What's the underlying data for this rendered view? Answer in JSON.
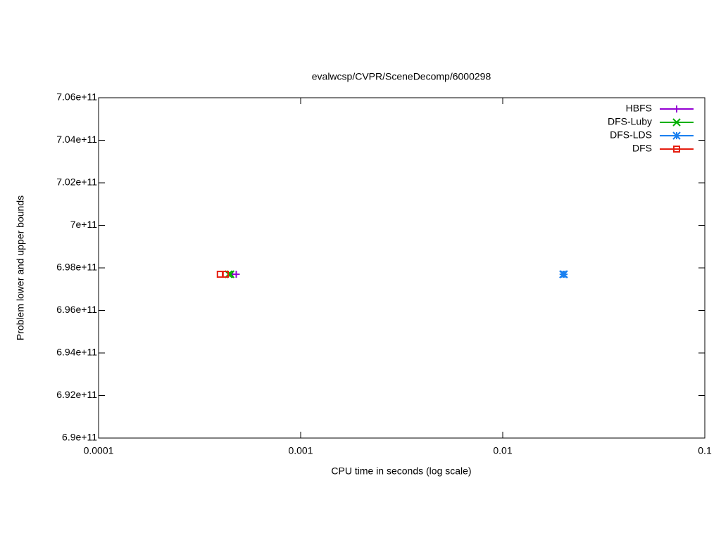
{
  "chart_data": {
    "type": "scatter",
    "title": "evalwcsp/CVPR/SceneDecomp/6000298",
    "x_label": "CPU time in seconds (log scale)",
    "y_label": "Problem lower and upper bounds",
    "xscale": "log",
    "xlim": [
      0.0001,
      0.1
    ],
    "xticks": [
      0.0001,
      0.001,
      0.01,
      0.1
    ],
    "ylim": [
      690000000000,
      706000000000
    ],
    "yticks": [
      {
        "value": 690000000000,
        "label": "6.9e+11"
      },
      {
        "value": 692000000000,
        "label": "6.92e+11"
      },
      {
        "value": 694000000000,
        "label": "6.94e+11"
      },
      {
        "value": 696000000000,
        "label": "6.96e+11"
      },
      {
        "value": 698000000000,
        "label": "6.98e+11"
      },
      {
        "value": 700000000000,
        "label": "7e+11"
      },
      {
        "value": 702000000000,
        "label": "7.02e+11"
      },
      {
        "value": 704000000000,
        "label": "7.04e+11"
      },
      {
        "value": 706000000000,
        "label": "7.06e+11"
      }
    ],
    "legend": "top-right",
    "series": [
      {
        "name": "HBFS",
        "color": "#9400d3",
        "marker": "plus",
        "x": [
          0.00046,
          0.00048
        ],
        "values": [
          697700000000,
          697700000000
        ]
      },
      {
        "name": "DFS-Luby",
        "color": "#00b000",
        "marker": "cross",
        "x": [
          0.00044,
          0.00045
        ],
        "values": [
          697700000000,
          697700000000
        ]
      },
      {
        "name": "DFS-LDS",
        "color": "#1a80f0",
        "marker": "star",
        "x": [
          0.0199,
          0.0201
        ],
        "values": [
          697700000000,
          697700000000
        ]
      },
      {
        "name": "DFS",
        "color": "#e51e10",
        "marker": "square",
        "x": [
          0.0004,
          0.000424
        ],
        "values": [
          697700000000,
          697700000000
        ]
      }
    ]
  }
}
